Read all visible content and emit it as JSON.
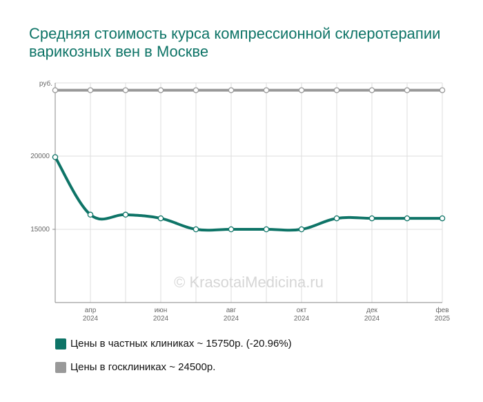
{
  "title": "Средняя стоимость курса компрессионной склеротерапии варикозных вен в Москве",
  "watermark": "© KrasotaiMedicina.ru",
  "colors": {
    "private": "#0e7467",
    "public": "#999999",
    "title": "#0e7467",
    "grid": "#dddddd",
    "axis": "#888888"
  },
  "legend": [
    {
      "label": "Цены в частных клиниках ~ 15750р. (-20.96%)",
      "color": "#0e7467"
    },
    {
      "label": "Цены в госклиниках ~ 24500р.",
      "color": "#999999"
    }
  ],
  "chart_data": {
    "type": "line",
    "ylabel": "руб.",
    "ylim": [
      10000,
      25000
    ],
    "yticks": [
      15000,
      20000
    ],
    "x": [
      "2024-03",
      "2024-04",
      "2024-05",
      "2024-06",
      "2024-07",
      "2024-08",
      "2024-09",
      "2024-10",
      "2024-11",
      "2024-12",
      "2025-01",
      "2025-02"
    ],
    "xtick_labels": [
      {
        "index": 1,
        "month": "апр",
        "year": "2024"
      },
      {
        "index": 3,
        "month": "июн",
        "year": "2024"
      },
      {
        "index": 5,
        "month": "авг",
        "year": "2024"
      },
      {
        "index": 7,
        "month": "окт",
        "year": "2024"
      },
      {
        "index": 9,
        "month": "дек",
        "year": "2024"
      },
      {
        "index": 11,
        "month": "фев",
        "year": "2025"
      }
    ],
    "series": [
      {
        "name": "Цены в частных клиниках",
        "color": "#0e7467",
        "values": [
          19930,
          16000,
          16000,
          15750,
          15000,
          15000,
          15000,
          15000,
          15750,
          15750,
          15750,
          15750
        ]
      },
      {
        "name": "Цены в госклиниках",
        "color": "#999999",
        "values": [
          24500,
          24500,
          24500,
          24500,
          24500,
          24500,
          24500,
          24500,
          24500,
          24500,
          24500,
          24500
        ]
      }
    ],
    "grid": true
  }
}
